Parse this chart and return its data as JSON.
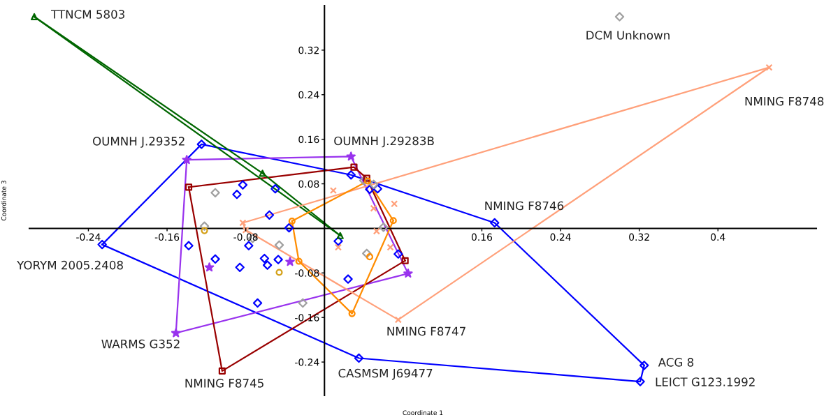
{
  "chart_data": {
    "type": "scatter",
    "xlabel": "Coordinate 1",
    "ylabel": "Coordinate 3",
    "xlim": [
      -0.3,
      0.5
    ],
    "ylim": [
      -0.3,
      0.4
    ],
    "xticks": [
      -0.24,
      -0.16,
      -0.08,
      0.16,
      0.24,
      0.32,
      0.4
    ],
    "yticks": [
      -0.24,
      -0.16,
      -0.08,
      0.08,
      0.16,
      0.24,
      0.32
    ],
    "grid": false,
    "legend": false,
    "series": [
      {
        "type": "line",
        "marker": "none",
        "color": "#0000ff",
        "x": [
          -0.226,
          -0.125,
          0.027,
          0.173,
          0.325
        ],
        "values": [
          -0.029,
          0.151,
          0.096,
          0.01,
          -0.246
        ]
      },
      {
        "type": "line",
        "marker": "none",
        "color": "#0000ff",
        "x": [
          -0.226,
          0.035,
          0.321,
          0.325
        ],
        "values": [
          -0.029,
          -0.233,
          -0.275,
          -0.246
        ]
      },
      {
        "type": "line",
        "marker": "none",
        "color": "#9933ee",
        "x": [
          -0.151,
          -0.14,
          0.027,
          0.085
        ],
        "values": [
          -0.188,
          0.123,
          0.129,
          -0.081
        ]
      },
      {
        "type": "line",
        "marker": "none",
        "color": "#9933ee",
        "x": [
          -0.151,
          0.085
        ],
        "values": [
          -0.188,
          -0.081
        ]
      },
      {
        "type": "line",
        "marker": "none",
        "color": "#990000",
        "x": [
          -0.138,
          0.03,
          0.043,
          0.082
        ],
        "values": [
          0.074,
          0.11,
          0.09,
          -0.058
        ]
      },
      {
        "type": "line",
        "marker": "none",
        "color": "#990000",
        "x": [
          -0.138,
          -0.104,
          0.082
        ],
        "values": [
          0.074,
          -0.256,
          -0.058
        ]
      },
      {
        "type": "line",
        "marker": "none",
        "color": "#006600",
        "x": [
          -0.295,
          -0.063,
          0.016
        ],
        "values": [
          0.38,
          0.099,
          -0.013
        ]
      },
      {
        "type": "line",
        "marker": "none",
        "color": "#006600",
        "x": [
          -0.295,
          0.016
        ],
        "values": [
          0.38,
          -0.013
        ]
      },
      {
        "type": "line",
        "marker": "none",
        "color": "#ffa07a",
        "x": [
          -0.083,
          0.452
        ],
        "values": [
          0.01,
          0.289
        ]
      },
      {
        "type": "line",
        "marker": "none",
        "color": "#ffa07a",
        "x": [
          -0.083,
          -0.08,
          0.075,
          0.452
        ],
        "values": [
          0.01,
          -0.003,
          -0.164,
          0.289
        ]
      },
      {
        "type": "line",
        "marker": "none",
        "color": "#ff8c00",
        "x": [
          -0.033,
          0.044,
          0.07
        ],
        "values": [
          0.013,
          0.085,
          0.014
        ]
      },
      {
        "type": "line",
        "marker": "none",
        "color": "#ff8c00",
        "x": [
          -0.033,
          -0.026,
          0.028,
          0.07
        ],
        "values": [
          0.013,
          -0.059,
          -0.153,
          0.014
        ]
      },
      {
        "color": "#0000ff",
        "marker": "diamond",
        "x": [
          -0.125,
          -0.226,
          0.035,
          0.321,
          0.325,
          0.173,
          0.027,
          -0.083,
          -0.089,
          -0.05,
          -0.056,
          -0.036,
          -0.138,
          -0.077,
          -0.111,
          -0.086,
          -0.061,
          -0.058,
          -0.047,
          0.014,
          0.046,
          0.054,
          0.075,
          0.024,
          -0.068
        ],
        "values": [
          0.151,
          -0.029,
          -0.233,
          -0.275,
          -0.246,
          0.01,
          0.096,
          0.078,
          0.061,
          0.071,
          0.024,
          0.001,
          -0.031,
          -0.031,
          -0.055,
          -0.07,
          -0.054,
          -0.066,
          -0.056,
          -0.023,
          0.07,
          0.071,
          -0.046,
          -0.091,
          -0.134
        ]
      },
      {
        "color": "#a0a0a0",
        "marker": "diamond",
        "x": [
          0.3,
          -0.111,
          -0.122,
          -0.073,
          -0.046,
          -0.022,
          0.043,
          0.04,
          0.05,
          0.06
        ],
        "values": [
          0.38,
          0.064,
          0.004,
          -0.018,
          -0.03,
          -0.134,
          -0.045,
          0.086,
          0.079,
          0.002
        ]
      },
      {
        "color": "#d4a017",
        "marker": "circle",
        "x": [
          -0.122,
          -0.046
        ],
        "values": [
          -0.004,
          -0.079
        ]
      },
      {
        "color": "#9933ee",
        "marker": "star",
        "x": [
          -0.14,
          0.027,
          0.085,
          -0.151,
          -0.117,
          -0.035
        ],
        "values": [
          0.123,
          0.129,
          -0.081,
          -0.188,
          -0.07,
          -0.06
        ]
      },
      {
        "color": "#990000",
        "marker": "square",
        "x": [
          -0.138,
          0.03,
          0.043,
          0.082,
          -0.104
        ],
        "values": [
          0.074,
          0.11,
          0.09,
          -0.058,
          -0.256
        ]
      },
      {
        "color": "#006600",
        "marker": "triangle",
        "x": [
          -0.295,
          -0.063,
          0.016
        ],
        "values": [
          0.38,
          0.099,
          -0.013
        ]
      },
      {
        "color": "#ffa07a",
        "marker": "cross",
        "x": [
          -0.083,
          -0.08,
          0.452,
          0.075,
          0.009,
          0.05,
          0.071,
          0.053,
          0.067,
          0.014
        ],
        "values": [
          0.01,
          -0.003,
          0.289,
          -0.164,
          0.068,
          0.036,
          0.044,
          -0.005,
          -0.034,
          -0.034
        ]
      },
      {
        "color": "#ff8c00",
        "marker": "circle",
        "x": [
          -0.033,
          -0.026,
          0.028,
          0.07,
          0.044,
          0.046
        ],
        "values": [
          0.013,
          -0.059,
          -0.153,
          0.014,
          0.085,
          -0.051
        ]
      }
    ],
    "annotations": [
      {
        "text": "TTNCM 5803",
        "x": -0.295,
        "y": 0.38
      },
      {
        "text": "DCM Unknown",
        "x": 0.3,
        "y": 0.38
      },
      {
        "text": "NMING F8748",
        "x": 0.452,
        "y": 0.289
      },
      {
        "text": "OUMNH J.29352",
        "x": -0.125,
        "y": 0.151
      },
      {
        "text": "OUMNH J.29283B",
        "x": 0.027,
        "y": 0.129
      },
      {
        "text": "NMING F8746",
        "x": 0.173,
        "y": 0.01
      },
      {
        "text": "YORYM 2005.2408",
        "x": -0.226,
        "y": -0.029
      },
      {
        "text": "WARMS G352",
        "x": -0.151,
        "y": -0.188
      },
      {
        "text": "NMING F8747",
        "x": 0.075,
        "y": -0.164
      },
      {
        "text": "NMING F8745",
        "x": -0.104,
        "y": -0.256
      },
      {
        "text": "CASMSM J69477",
        "x": 0.035,
        "y": -0.233
      },
      {
        "text": "ACG 8",
        "x": 0.325,
        "y": -0.246
      },
      {
        "text": "LEICT G123.1992",
        "x": 0.321,
        "y": -0.275
      }
    ]
  }
}
